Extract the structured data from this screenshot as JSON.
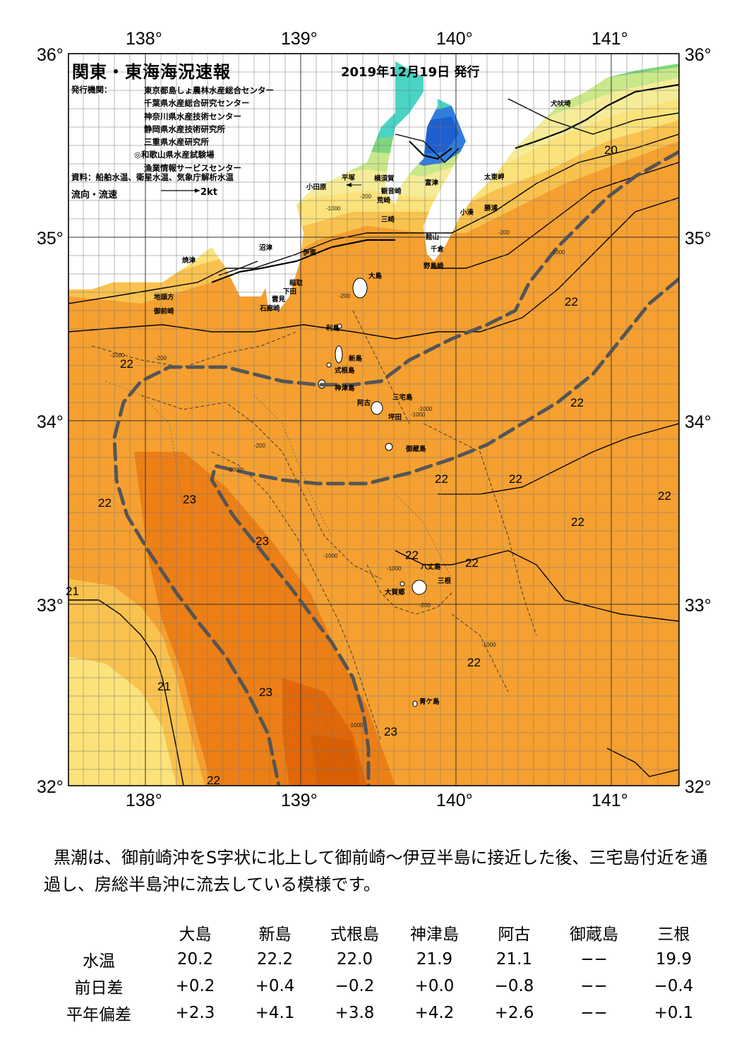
{
  "header": {
    "title": "関東・東海海況速報",
    "date": "2019年12月19日 発行",
    "publisher_label": "発行機関：",
    "publishers": [
      "東京都島しょ農林水産総合センター",
      "千葉県水産総合研究センター",
      "神奈川県水産技術センター",
      "静岡県水産技術研究所",
      "三重県水産研究所",
      "◎和歌山県水産試験場",
      "漁業情報サービスセンター"
    ],
    "source": "資料：船舶水温、衛星水温、気象庁解析水温",
    "flow_label": "流向・流速",
    "flow_unit": "2kt"
  },
  "axes": {
    "lon_labels": [
      "138°",
      "139°",
      "140°",
      "141°"
    ],
    "lat_labels": [
      "36°",
      "35°",
      "34°",
      "33°",
      "32°"
    ]
  },
  "colors": {
    "orange": "#f5a030",
    "deep_orange": "#ec7f15",
    "core": "#e26708",
    "light_orange": "#f9c24e",
    "yellow": "#fbe27a",
    "pale_yellow": "#f6ec98",
    "green": "#7fd67e",
    "cyan": "#49d4c4",
    "blue": "#2f7ee0",
    "land": "#ffffff",
    "kuroshio_axis": "#555555"
  },
  "place_names": [
    "犬吠埼",
    "太東岬",
    "勝浦",
    "小湊",
    "富津",
    "館山",
    "千倉",
    "野島崎",
    "横須賀",
    "観音崎",
    "荒崎",
    "三崎",
    "平塚",
    "小田原",
    "沼津",
    "伊東",
    "稲取",
    "下田",
    "雲見",
    "石廊崎",
    "焼津",
    "地頭方",
    "御前崎",
    "大島",
    "利島",
    "新島",
    "式根島",
    "神津島",
    "三宅島",
    "阿古",
    "坪田",
    "御蔵島",
    "八丈島",
    "三根",
    "大賀郷",
    "青ケ島"
  ],
  "isotherm_labels": [
    "20",
    "22",
    "22",
    "22",
    "22",
    "22",
    "22",
    "22",
    "22",
    "22",
    "22",
    "22",
    "22",
    "23",
    "23",
    "23",
    "23",
    "21",
    "21",
    "21",
    "22"
  ],
  "depth_labels": [
    "-1000",
    "-200"
  ],
  "description": "黒潮は、御前崎沖をS字状に北上して御前崎～伊豆半島に接近した後、三宅島付近を通過し、房総半島沖に流去している模様です。",
  "table": {
    "columns": [
      "大島",
      "新島",
      "式根島",
      "神津島",
      "阿古",
      "御蔵島",
      "三根"
    ],
    "rows": [
      {
        "label": "水温",
        "values": [
          "20.2",
          "22.2",
          "22.0",
          "21.9",
          "21.1",
          "−−",
          "19.9"
        ]
      },
      {
        "label": "前日差",
        "values": [
          "+0.2",
          "+0.4",
          "−0.2",
          "+0.0",
          "−0.8",
          "−−",
          "−0.4"
        ]
      },
      {
        "label": "平年偏差",
        "values": [
          "+2.3",
          "+4.1",
          "+3.8",
          "+4.2",
          "+2.6",
          "−−",
          "+0.1"
        ]
      }
    ]
  }
}
